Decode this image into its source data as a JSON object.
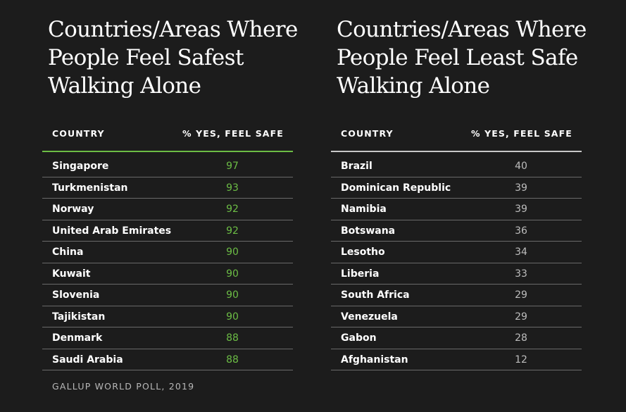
{
  "colors": {
    "background": "#1c1c1c",
    "text": "#ffffff",
    "safe_accent": "#6cbd45",
    "unsafe_value": "#bdbdbd",
    "unsafe_rule": "#c8c8c8",
    "row_divider": "#6a6a6a",
    "source_text": "#b8b8b8"
  },
  "chart_data": [
    {
      "type": "table",
      "title": "Countries/Areas Where People Feel Safest Walking Alone",
      "title_lines": [
        "Countries/Areas Where",
        "People Feel Safest",
        "Walking Alone"
      ],
      "columns": [
        "COUNTRY",
        "% YES, FEEL SAFE"
      ],
      "rows": [
        {
          "country": "Singapore",
          "value": 97
        },
        {
          "country": "Turkmenistan",
          "value": 93
        },
        {
          "country": "Norway",
          "value": 92
        },
        {
          "country": "United Arab Emirates",
          "value": 92
        },
        {
          "country": "China",
          "value": 90
        },
        {
          "country": "Kuwait",
          "value": 90
        },
        {
          "country": "Slovenia",
          "value": 90
        },
        {
          "country": "Tajikistan",
          "value": 90
        },
        {
          "country": "Denmark",
          "value": 88
        },
        {
          "country": "Saudi Arabia",
          "value": 88
        }
      ]
    },
    {
      "type": "table",
      "title": "Countries/Areas Where People Feel Least Safe Walking Alone",
      "title_lines": [
        "Countries/Areas Where",
        "People Feel Least Safe",
        "Walking Alone"
      ],
      "columns": [
        "COUNTRY",
        "% YES, FEEL SAFE"
      ],
      "rows": [
        {
          "country": "Brazil",
          "value": 40
        },
        {
          "country": "Dominican Republic",
          "value": 39
        },
        {
          "country": "Namibia",
          "value": 39
        },
        {
          "country": "Botswana",
          "value": 36
        },
        {
          "country": "Lesotho",
          "value": 34
        },
        {
          "country": "Liberia",
          "value": 33
        },
        {
          "country": "South Africa",
          "value": 29
        },
        {
          "country": "Venezuela",
          "value": 29
        },
        {
          "country": "Gabon",
          "value": 28
        },
        {
          "country": "Afghanistan",
          "value": 12
        }
      ]
    }
  ],
  "source": "GALLUP WORLD POLL, 2019"
}
